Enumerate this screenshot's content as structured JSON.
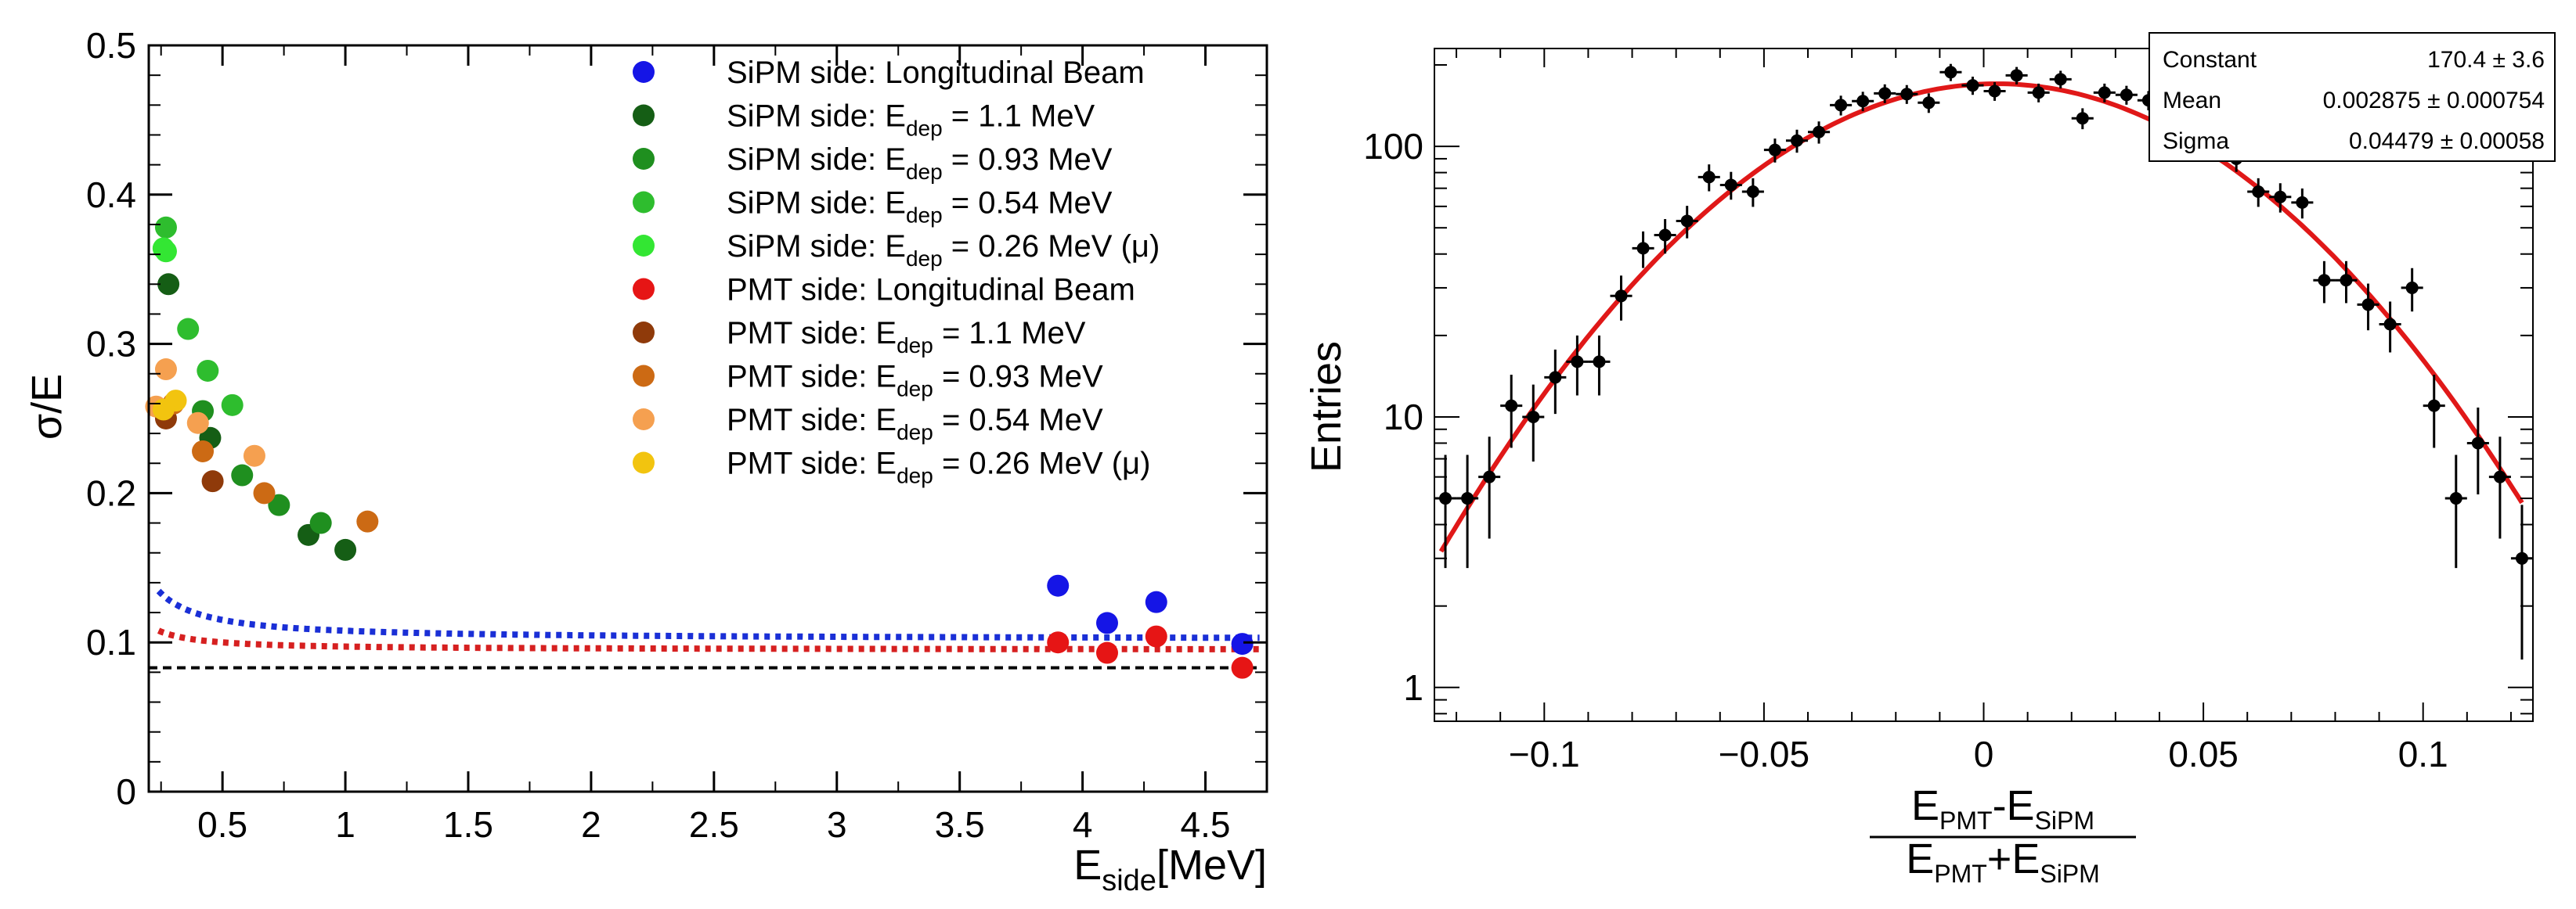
{
  "chart_data": [
    {
      "type": "scatter",
      "xlabel_main": "E",
      "xlabel_sub": "side",
      "xlabel_unit": "[MeV]",
      "ylabel": "σ/E",
      "xlim": [
        0.2,
        4.75
      ],
      "ylim": [
        0,
        0.5
      ],
      "x_ticks": [
        "0.5",
        "1",
        "1.5",
        "2",
        "2.5",
        "3",
        "3.5",
        "4",
        "4.5"
      ],
      "x_tick_values": [
        0.5,
        1,
        1.5,
        2,
        2.5,
        3,
        3.5,
        4,
        4.5
      ],
      "y_ticks": [
        "0",
        "0.1",
        "0.2",
        "0.3",
        "0.4",
        "0.5"
      ],
      "y_tick_values": [
        0,
        0.1,
        0.2,
        0.3,
        0.4,
        0.5
      ],
      "reference_line": 0.083,
      "legend": [
        {
          "pre": "SiPM side: Longitudinal Beam",
          "sub": "",
          "post": "",
          "color": "#1515e6"
        },
        {
          "pre": "SiPM side: E",
          "sub": "dep",
          "post": " = 1.1 MeV",
          "color": "#155e15"
        },
        {
          "pre": "SiPM side: E",
          "sub": "dep",
          "post": " = 0.93 MeV",
          "color": "#1f8f1f"
        },
        {
          "pre": "SiPM side: E",
          "sub": "dep",
          "post": " = 0.54 MeV",
          "color": "#2ebd2e"
        },
        {
          "pre": "SiPM side: E",
          "sub": "dep",
          "post": " = 0.26 MeV (μ)",
          "color": "#33e633"
        },
        {
          "pre": "PMT side: Longitudinal Beam",
          "sub": "",
          "post": "",
          "color": "#e61515"
        },
        {
          "pre": "PMT side: E",
          "sub": "dep",
          "post": " = 1.1 MeV",
          "color": "#8f3a0a"
        },
        {
          "pre": "PMT side: E",
          "sub": "dep",
          "post": " = 0.93 MeV",
          "color": "#cc6a14"
        },
        {
          "pre": "PMT side: E",
          "sub": "dep",
          "post": " = 0.54 MeV",
          "color": "#f5a050"
        },
        {
          "pre": "PMT side: E",
          "sub": "dep",
          "post": " = 0.26 MeV (μ)",
          "color": "#f2c40f"
        }
      ],
      "series": [
        {
          "name": "SiPM side: Longitudinal Beam",
          "color": "#1515e6",
          "points": [
            [
              3.9,
              0.138
            ],
            [
              4.1,
              0.113
            ],
            [
              4.3,
              0.127
            ],
            [
              4.65,
              0.099
            ]
          ]
        },
        {
          "name": "SiPM side: Edep = 1.1 MeV",
          "color": "#155e15",
          "points": [
            [
              0.28,
              0.34
            ],
            [
              0.45,
              0.237
            ],
            [
              0.85,
              0.172
            ],
            [
              1.0,
              0.162
            ]
          ]
        },
        {
          "name": "SiPM side: Edep = 0.93 MeV",
          "color": "#1f8f1f",
          "points": [
            [
              0.42,
              0.255
            ],
            [
              0.58,
              0.212
            ],
            [
              0.73,
              0.192
            ],
            [
              0.9,
              0.18
            ]
          ]
        },
        {
          "name": "SiPM side: Edep = 0.54 MeV",
          "color": "#2ebd2e",
          "points": [
            [
              0.27,
              0.378
            ],
            [
              0.36,
              0.31
            ],
            [
              0.44,
              0.282
            ],
            [
              0.54,
              0.259
            ]
          ]
        },
        {
          "name": "SiPM side: Edep = 0.26 MeV (μ)",
          "color": "#33e633",
          "points": [
            [
              0.26,
              0.364
            ],
            [
              0.27,
              0.362
            ]
          ]
        },
        {
          "name": "PMT side: Longitudinal Beam",
          "color": "#e61515",
          "points": [
            [
              3.9,
              0.1
            ],
            [
              4.1,
              0.093
            ],
            [
              4.3,
              0.104
            ],
            [
              4.65,
              0.083
            ]
          ]
        },
        {
          "name": "PMT side: Edep = 1.1 MeV",
          "color": "#8f3a0a",
          "points": [
            [
              0.27,
              0.25
            ],
            [
              0.46,
              0.208
            ]
          ]
        },
        {
          "name": "PMT side: Edep = 0.93 MeV",
          "color": "#cc6a14",
          "points": [
            [
              0.3,
              0.26
            ],
            [
              0.42,
              0.228
            ],
            [
              0.67,
              0.2
            ],
            [
              1.09,
              0.181
            ]
          ]
        },
        {
          "name": "PMT side: Edep = 0.54 MeV",
          "color": "#f5a050",
          "points": [
            [
              0.23,
              0.258
            ],
            [
              0.27,
              0.283
            ],
            [
              0.4,
              0.247
            ],
            [
              0.63,
              0.225
            ]
          ]
        },
        {
          "name": "PMT side: Edep = 0.26 MeV (μ)",
          "color": "#f2c40f",
          "points": [
            [
              0.31,
              0.262
            ],
            [
              0.26,
              0.256
            ]
          ]
        }
      ],
      "fits": [
        {
          "name": "SiPM fit",
          "color": "#1a2fd6",
          "a": 0.102,
          "b": 0.032,
          "c": 0.014
        },
        {
          "name": "PMT fit",
          "color": "#d62020",
          "a": 0.095,
          "b": 0.019,
          "c": 0.008
        }
      ]
    },
    {
      "type": "scatter",
      "ylabel": "Entries",
      "xlabel_num_parts": [
        "E",
        "PMT",
        "-E",
        "SiPM"
      ],
      "xlabel_den_parts": [
        "E",
        "PMT",
        "+E",
        "SiPM"
      ],
      "xlim": [
        -0.125,
        0.125
      ],
      "ylim_log": [
        0.75,
        230
      ],
      "x_ticks": [
        "−0.1",
        "−0.05",
        "0",
        "0.05",
        "0.1"
      ],
      "x_tick_values": [
        -0.1,
        -0.05,
        0,
        0.05,
        0.1
      ],
      "y_ticks": [
        "1",
        "10",
        "100"
      ],
      "y_tick_values": [
        1,
        10,
        100
      ],
      "stats": [
        {
          "label": "Constant",
          "value": "170.4 ± 3.6"
        },
        {
          "label": "Mean",
          "value": "0.002875 ± 0.000754"
        },
        {
          "label": "Sigma",
          "value": "0.04479 ± 0.00058"
        }
      ],
      "gauss": {
        "constant": 170.4,
        "mean": 0.002875,
        "sigma": 0.04479
      },
      "fit_color": "#e01818",
      "points": [
        [
          -0.1225,
          5
        ],
        [
          -0.1175,
          5
        ],
        [
          -0.1125,
          6
        ],
        [
          -0.1075,
          11
        ],
        [
          -0.1025,
          10
        ],
        [
          -0.0975,
          14
        ],
        [
          -0.0925,
          16
        ],
        [
          -0.0875,
          16
        ],
        [
          -0.0825,
          28
        ],
        [
          -0.0775,
          42
        ],
        [
          -0.0725,
          47
        ],
        [
          -0.0675,
          53
        ],
        [
          -0.0625,
          77
        ],
        [
          -0.0575,
          72
        ],
        [
          -0.0525,
          68
        ],
        [
          -0.0475,
          97
        ],
        [
          -0.0425,
          105
        ],
        [
          -0.0375,
          113
        ],
        [
          -0.0325,
          142
        ],
        [
          -0.0275,
          147
        ],
        [
          -0.0225,
          157
        ],
        [
          -0.0175,
          156
        ],
        [
          -0.0125,
          145
        ],
        [
          -0.0075,
          188
        ],
        [
          -0.0025,
          168
        ],
        [
          0.0025,
          160
        ],
        [
          0.0075,
          183
        ],
        [
          0.0125,
          158
        ],
        [
          0.0175,
          177
        ],
        [
          0.0225,
          127
        ],
        [
          0.0275,
          158
        ],
        [
          0.0325,
          155
        ],
        [
          0.0375,
          148
        ],
        [
          0.0425,
          118
        ],
        [
          0.0475,
          115
        ],
        [
          0.0525,
          120
        ],
        [
          0.0575,
          90
        ],
        [
          0.0625,
          68
        ],
        [
          0.0675,
          65
        ],
        [
          0.0725,
          62
        ],
        [
          0.0775,
          32
        ],
        [
          0.0825,
          32
        ],
        [
          0.0875,
          26
        ],
        [
          0.0925,
          22
        ],
        [
          0.0975,
          30
        ],
        [
          0.1025,
          11
        ],
        [
          0.1075,
          5
        ],
        [
          0.1125,
          8
        ],
        [
          0.1175,
          6
        ],
        [
          0.1225,
          3
        ]
      ]
    }
  ]
}
